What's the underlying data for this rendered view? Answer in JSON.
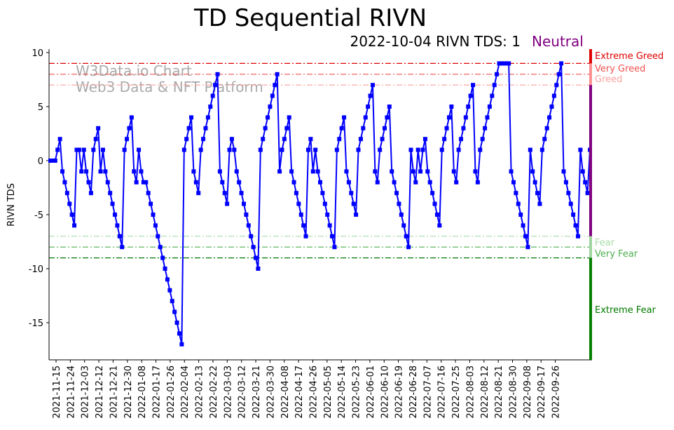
{
  "chart_data": {
    "type": "line",
    "title": "TD Sequential RIVN",
    "subtitle": "2022-10-04 RIVN TDS: 1",
    "status": "Neutral",
    "ylabel": "RIVN TDS",
    "xlabel": "",
    "ylim": [
      -18.4,
      10.3
    ],
    "yticks": [
      10,
      5,
      0,
      -5,
      -10,
      -15
    ],
    "xticks": [
      "2021-11-15",
      "2021-11-24",
      "2021-12-03",
      "2021-12-12",
      "2021-12-21",
      "2021-12-30",
      "2022-01-08",
      "2022-01-17",
      "2022-01-26",
      "2022-02-04",
      "2022-02-13",
      "2022-02-22",
      "2022-03-03",
      "2022-03-12",
      "2022-03-21",
      "2022-03-30",
      "2022-04-08",
      "2022-04-17",
      "2022-04-26",
      "2022-05-05",
      "2022-05-14",
      "2022-05-23",
      "2022-06-01",
      "2022-06-10",
      "2022-06-19",
      "2022-06-28",
      "2022-07-07",
      "2022-07-16",
      "2022-07-25",
      "2022-08-03",
      "2022-08-12",
      "2022-08-21",
      "2022-08-30",
      "2022-09-08",
      "2022-09-17",
      "2022-09-26"
    ],
    "watermark": [
      "W3Data.io Chart",
      "Web3 Data & NFT Platform"
    ],
    "levels": [
      {
        "label": "Extreme Greed",
        "value": 9,
        "color": "#e00000"
      },
      {
        "label": "Very Greed",
        "value": 8,
        "color": "#f05050"
      },
      {
        "label": "Greed",
        "value": 7,
        "color": "#ffa0a0"
      },
      {
        "label": "Fear",
        "value": -7,
        "color": "#a8dca8"
      },
      {
        "label": "Very Fear",
        "value": -8,
        "color": "#4caf50"
      },
      {
        "label": "Extreme Fear",
        "value": -9,
        "color": "#007a00"
      }
    ],
    "series": [
      {
        "name": "RIVN TDS",
        "color": "#0000ff",
        "values": [
          0,
          0,
          0,
          1,
          2,
          -1,
          -2,
          -3,
          -4,
          -5,
          -6,
          1,
          1,
          -1,
          1,
          -1,
          -2,
          -3,
          1,
          2,
          3,
          -1,
          1,
          -1,
          -2,
          -3,
          -4,
          -5,
          -6,
          -7,
          -8,
          1,
          2,
          3,
          4,
          -1,
          -2,
          1,
          -1,
          -2,
          -2,
          -3,
          -4,
          -5,
          -6,
          -7,
          -8,
          -9,
          -10,
          -11,
          -12,
          -13,
          -14,
          -15,
          -16,
          -17,
          1,
          2,
          3,
          4,
          -1,
          -2,
          -3,
          1,
          2,
          3,
          4,
          5,
          6,
          7,
          8,
          -1,
          -2,
          -3,
          -4,
          1,
          2,
          1,
          -1,
          -2,
          -3,
          -4,
          -5,
          -6,
          -7,
          -8,
          -9,
          -10,
          1,
          2,
          3,
          4,
          5,
          6,
          7,
          8,
          -1,
          1,
          2,
          3,
          4,
          -1,
          -2,
          -3,
          -4,
          -5,
          -6,
          -7,
          1,
          2,
          -1,
          1,
          -1,
          -2,
          -3,
          -4,
          -5,
          -6,
          -7,
          -8,
          1,
          2,
          3,
          4,
          -1,
          -2,
          -3,
          -4,
          -5,
          1,
          2,
          3,
          4,
          5,
          6,
          7,
          -1,
          -2,
          1,
          2,
          3,
          4,
          5,
          -1,
          -2,
          -3,
          -4,
          -5,
          -6,
          -7,
          -8,
          1,
          -1,
          -2,
          1,
          -1,
          1,
          2,
          -1,
          -2,
          -3,
          -4,
          -5,
          -6,
          1,
          2,
          3,
          4,
          5,
          -1,
          -2,
          1,
          2,
          3,
          4,
          5,
          6,
          7,
          -1,
          -2,
          1,
          2,
          3,
          4,
          5,
          6,
          7,
          8,
          9,
          9,
          9,
          9,
          9,
          -1,
          -2,
          -3,
          -4,
          -5,
          -6,
          -7,
          -8,
          1,
          -1,
          -2,
          -3,
          -4,
          1,
          2,
          3,
          4,
          5,
          6,
          7,
          8,
          9,
          -1,
          -2,
          -3,
          -4,
          -5,
          -6,
          -7,
          1,
          -1,
          -2,
          -3,
          1
        ]
      }
    ],
    "band_colors": {
      "greed": "#e00000",
      "neutral": "#800080",
      "fear": "#008000"
    }
  }
}
